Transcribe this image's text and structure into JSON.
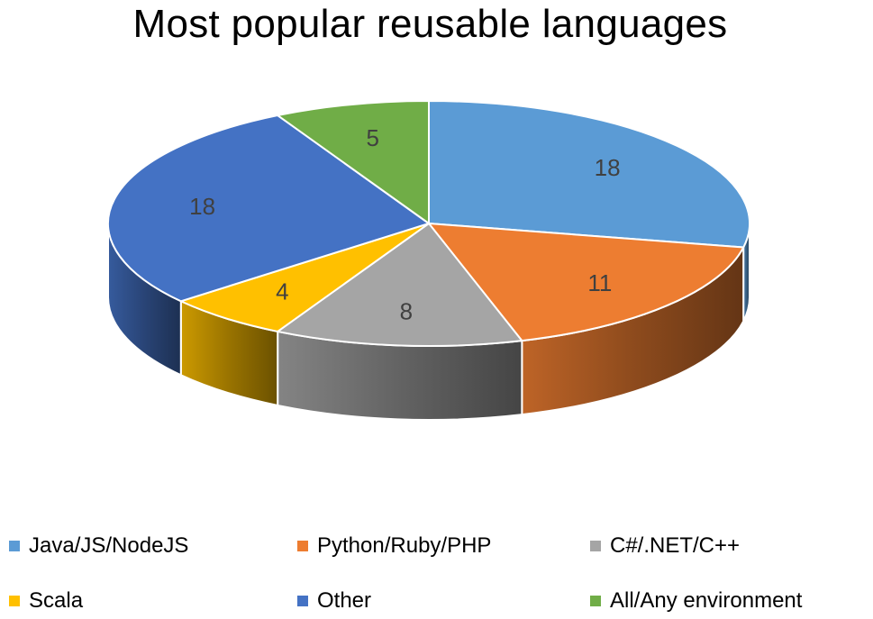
{
  "chart_data": {
    "type": "pie",
    "title": "Most popular reusable languages",
    "slices": [
      {
        "label": "Java/JS/NodeJS",
        "value": 18,
        "color": "#5B9BD5"
      },
      {
        "label": "Python/Ruby/PHP",
        "value": 11,
        "color": "#ED7D31"
      },
      {
        "label": "C#/.NET/C++",
        "value": 8,
        "color": "#A5A5A5"
      },
      {
        "label": "Scala",
        "value": 4,
        "color": "#FFC000"
      },
      {
        "label": "Other",
        "value": 18,
        "color": "#4472C4"
      },
      {
        "label": "All/Any environment",
        "value": 5,
        "color": "#70AD47"
      }
    ],
    "style": "3d-pie",
    "data_labels": true,
    "legend_position": "bottom"
  }
}
